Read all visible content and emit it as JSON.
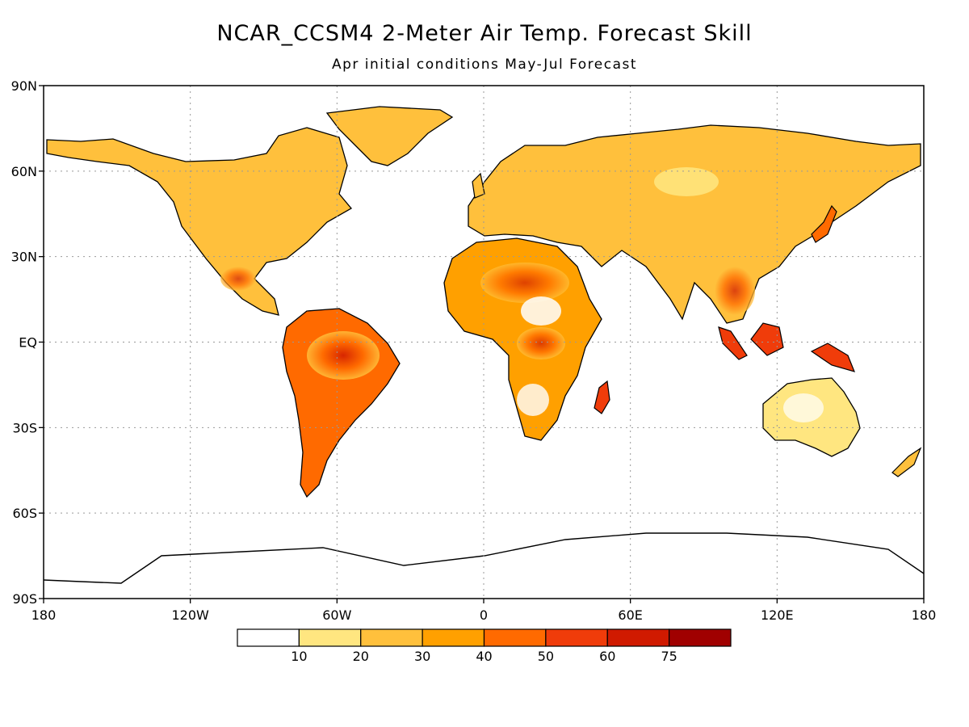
{
  "title": "NCAR_CCSM4 2-Meter Air Temp. Forecast Skill",
  "subtitle": "Apr initial conditions   May-Jul Forecast",
  "map": {
    "lat_labels": [
      "90N",
      "60N",
      "30N",
      "EQ",
      "30S",
      "60S",
      "90S"
    ],
    "lon_labels": [
      "180",
      "120W",
      "60W",
      "0",
      "60E",
      "120E",
      "180"
    ],
    "grid": true
  },
  "colorbar": {
    "labels": [
      "10",
      "20",
      "30",
      "40",
      "50",
      "60",
      "75"
    ],
    "colors": [
      "#ffffff",
      "#ffe680",
      "#ffc03c",
      "#ffa000",
      "#ff6a00",
      "#f03c0a",
      "#d01a00",
      "#a00000"
    ]
  }
}
